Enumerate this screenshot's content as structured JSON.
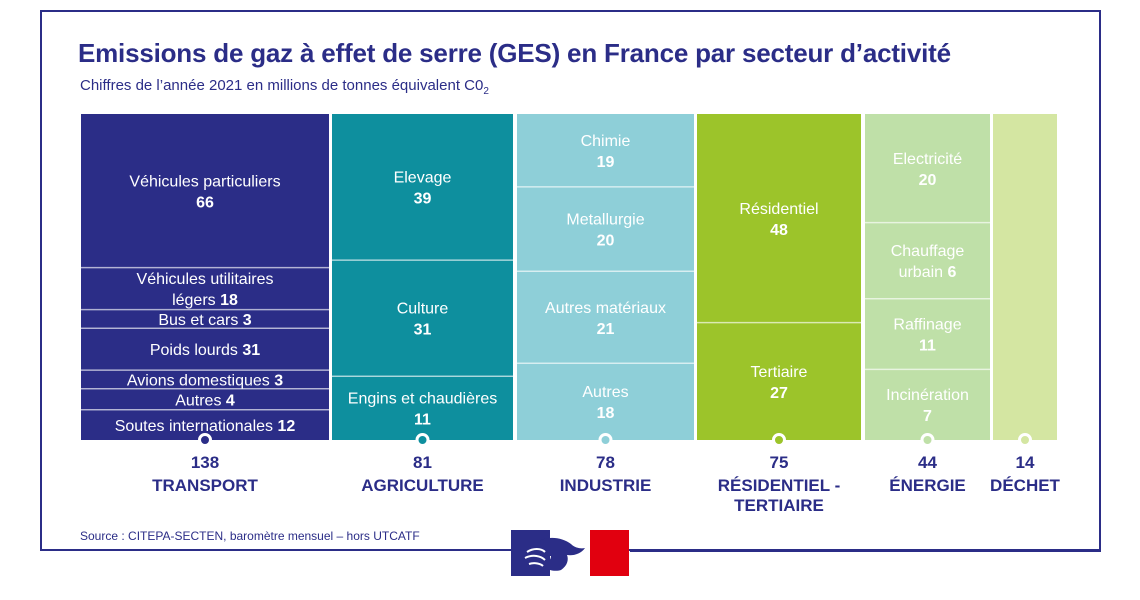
{
  "title": "Emissions de gaz à effet de serre (GES) en France par secteur d’activité",
  "subtitle": "Chiffres de l’année 2021 en millions de tonnes équivalent C0",
  "subtitle_sub": "2",
  "source": "Source : CITEPA-SECTEN, baromètre mensuel – hors UTCATF",
  "logo_icon": "marianne-republique-francaise-icon",
  "chart_data": {
    "type": "treemap-columns",
    "unit": "millions de tonnes équivalent CO2",
    "sectors": [
      {
        "name": "TRANSPORT",
        "total": "138",
        "color": "#2b2d87",
        "text_color": "#ffffff",
        "segments": [
          {
            "lines": [
              "Véhicules particuliers"
            ],
            "value": "66",
            "inline": false,
            "weight": 66
          },
          {
            "lines": [
              "Véhicules utilitaires",
              "légers"
            ],
            "value": "18",
            "inline": true,
            "weight": 18
          },
          {
            "lines": [
              "Bus et cars"
            ],
            "value": "3",
            "inline": true,
            "weight": 8
          },
          {
            "lines": [
              "Poids lourds"
            ],
            "value": "31",
            "inline": true,
            "weight": 18
          },
          {
            "lines": [
              "Avions domestiques"
            ],
            "value": "3",
            "inline": true,
            "weight": 8
          },
          {
            "lines": [
              "Autres"
            ],
            "value": "4",
            "inline": true,
            "weight": 9
          },
          {
            "lines": [
              "Soutes internationales"
            ],
            "value": "12",
            "inline": true,
            "weight": 13
          }
        ]
      },
      {
        "name": "AGRICULTURE",
        "total": "81",
        "color": "#0e8f9e",
        "text_color": "#ffffff",
        "segments": [
          {
            "lines": [
              "Elevage"
            ],
            "value": "39",
            "inline": false,
            "weight": 39
          },
          {
            "lines": [
              "Culture"
            ],
            "value": "31",
            "inline": false,
            "weight": 31
          },
          {
            "lines": [
              "Engins et chaudières"
            ],
            "value": "11",
            "inline": false,
            "weight": 17
          }
        ]
      },
      {
        "name": "INDUSTRIE",
        "total": "78",
        "color": "#8ecfd8",
        "text_color": "#ffffff",
        "segments": [
          {
            "lines": [
              "Chimie"
            ],
            "value": "19",
            "inline": false,
            "weight": 19
          },
          {
            "lines": [
              "Metallurgie"
            ],
            "value": "20",
            "inline": false,
            "weight": 22
          },
          {
            "lines": [
              "Autres matériaux"
            ],
            "value": "21",
            "inline": false,
            "weight": 24
          },
          {
            "lines": [
              "Autres"
            ],
            "value": "18",
            "inline": false,
            "weight": 20
          }
        ]
      },
      {
        "name": "RÉSIDENTIEL - TERTIAIRE",
        "total": "75",
        "color": "#9cc42a",
        "text_color": "#ffffff",
        "segments": [
          {
            "lines": [
              "Résidentiel"
            ],
            "value": "48",
            "inline": false,
            "weight": 48
          },
          {
            "lines": [
              "Tertiaire"
            ],
            "value": "27",
            "inline": false,
            "weight": 27
          }
        ]
      },
      {
        "name": "ÉNERGIE",
        "total": "44",
        "color": "#bfe0a8",
        "text_color": "#ffffff",
        "segments": [
          {
            "lines": [
              "Electricité"
            ],
            "value": "20",
            "inline": false,
            "weight": 20
          },
          {
            "lines": [
              "Chauffage",
              "urbain"
            ],
            "value": "6",
            "inline": true,
            "weight": 14
          },
          {
            "lines": [
              "Raffinage"
            ],
            "value": "11",
            "inline": false,
            "weight": 13
          },
          {
            "lines": [
              "Incinération"
            ],
            "value": "7",
            "inline": false,
            "weight": 13
          }
        ]
      },
      {
        "name": "DÉCHET",
        "total": "14",
        "color": "#d4e6a2",
        "text_color": "#ffffff",
        "segments": [
          {
            "lines": [],
            "value": "",
            "inline": false,
            "weight": 14
          }
        ]
      }
    ]
  }
}
